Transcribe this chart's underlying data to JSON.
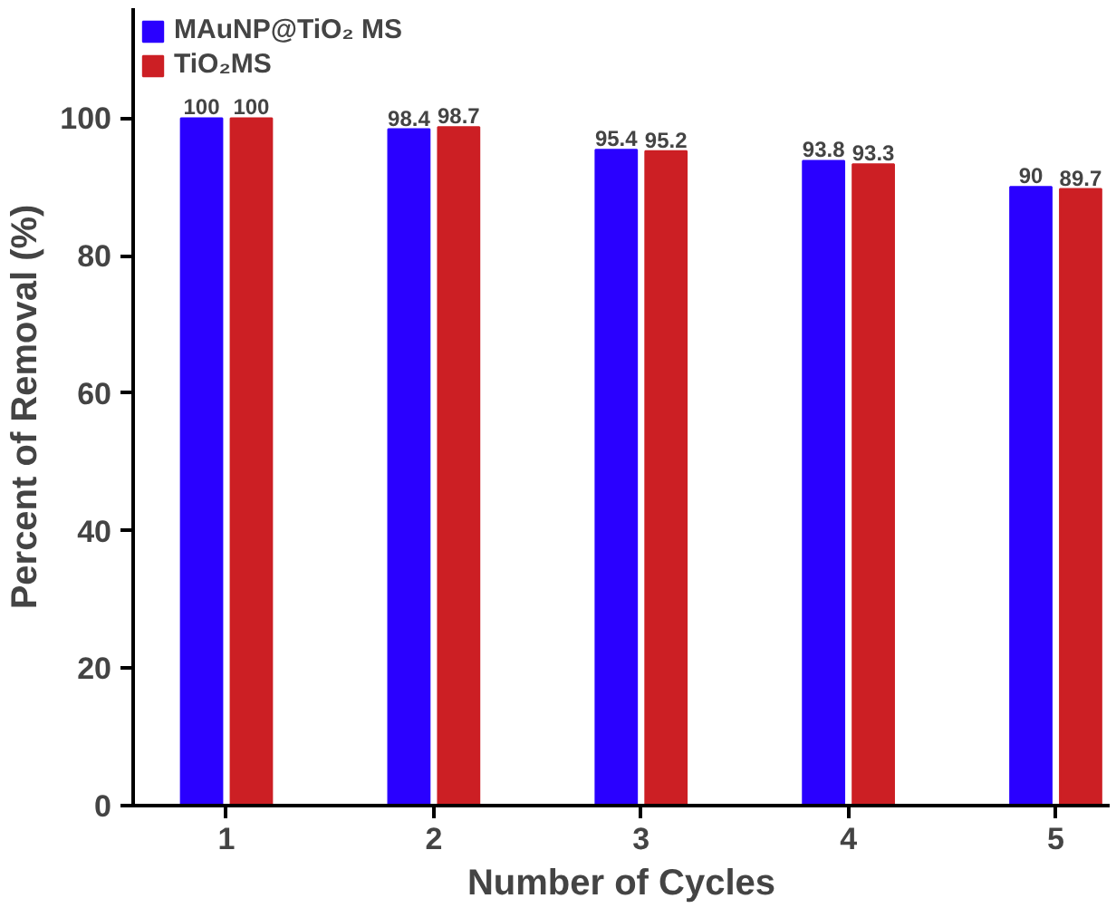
{
  "chart_data": {
    "type": "bar",
    "xlabel": "Number of Cycles",
    "ylabel": "Percent of Removal (%)",
    "categories": [
      "1",
      "2",
      "3",
      "4",
      "5"
    ],
    "series": [
      {
        "name": "MAuNP@TiO₂ MS",
        "color": "#2a00ff",
        "values": [
          100,
          98.4,
          95.4,
          93.8,
          90
        ]
      },
      {
        "name": "TiO₂MS",
        "color": "#cc1f24",
        "values": [
          100,
          98.7,
          95.2,
          93.3,
          89.7
        ]
      }
    ],
    "ylim": [
      0,
      116
    ],
    "yticks": [
      0,
      20,
      40,
      60,
      80,
      100
    ],
    "data_labels": true,
    "legend": "top left",
    "grid": false
  }
}
